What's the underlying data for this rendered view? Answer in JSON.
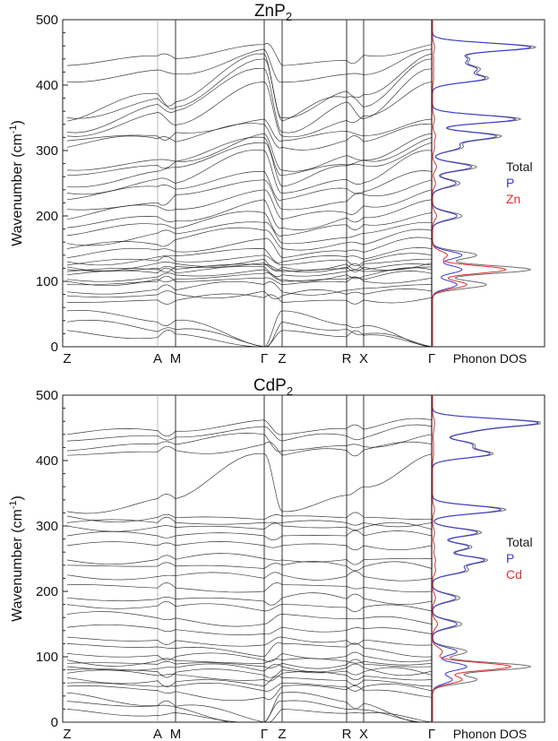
{
  "colors": {
    "total": "#6e6e6e",
    "p": "#3a3ad0",
    "metal": "#e03030",
    "band": "#1a1a1a"
  },
  "chart_data": [
    {
      "type": "line",
      "panel": "band-structure-and-dos",
      "title_main": "ZnP",
      "title_sub": "2",
      "ylabel_main": "Wavenumber (cm",
      "ylabel_sup": "-1",
      "ylabel_end": ")",
      "ylim": [
        0,
        500
      ],
      "yticks": [
        "0",
        "100",
        "200",
        "300",
        "400",
        "500"
      ],
      "kpoints": [
        "Z",
        "A",
        "M",
        "Γ",
        "Z",
        "R",
        "X",
        "Γ"
      ],
      "dos_label": "Phonon DOS",
      "legend": [
        "Total",
        "P",
        "Zn"
      ],
      "band_levels_at_Z": [
        25,
        38,
        55,
        68,
        78,
        84,
        95,
        100,
        103,
        110,
        115,
        118,
        122,
        125,
        130,
        136,
        150,
        158,
        170,
        182,
        195,
        210,
        225,
        235,
        245,
        262,
        270,
        305,
        315,
        322,
        328,
        345,
        350,
        405,
        430,
        438,
        448,
        455,
        460
      ],
      "band_levels_at_Gamma": [
        0,
        0,
        0,
        75,
        85,
        95,
        105,
        112,
        118,
        122,
        125,
        128,
        134,
        140,
        150,
        165,
        178,
        190,
        205,
        225,
        240,
        255,
        268,
        300,
        312,
        320,
        326,
        340,
        348,
        405,
        425,
        440,
        448,
        455,
        462
      ],
      "dos_peaks": [
        {
          "freq": 118,
          "total": 1.0,
          "p": 0.3,
          "metal": 0.75
        },
        {
          "freq": 95,
          "total": 0.55,
          "p": 0.25,
          "metal": 0.35
        },
        {
          "freq": 140,
          "total": 0.45,
          "p": 0.3,
          "metal": 0.15
        },
        {
          "freq": 200,
          "total": 0.3,
          "p": 0.25,
          "metal": 0.04
        },
        {
          "freq": 250,
          "total": 0.28,
          "p": 0.24,
          "metal": 0.03
        },
        {
          "freq": 275,
          "total": 0.45,
          "p": 0.4,
          "metal": 0.04
        },
        {
          "freq": 305,
          "total": 0.3,
          "p": 0.27,
          "metal": 0.02
        },
        {
          "freq": 322,
          "total": 0.7,
          "p": 0.65,
          "metal": 0.03
        },
        {
          "freq": 348,
          "total": 0.9,
          "p": 0.85,
          "metal": 0.02
        },
        {
          "freq": 410,
          "total": 0.55,
          "p": 0.52,
          "metal": 0.01
        },
        {
          "freq": 425,
          "total": 0.45,
          "p": 0.42,
          "metal": 0.01
        },
        {
          "freq": 440,
          "total": 0.35,
          "p": 0.33,
          "metal": 0.01
        },
        {
          "freq": 458,
          "total": 1.05,
          "p": 1.0,
          "metal": 0.02
        }
      ]
    },
    {
      "type": "line",
      "panel": "band-structure-and-dos",
      "title_main": "CdP",
      "title_sub": "2",
      "ylabel_main": "Wavenumber (cm",
      "ylabel_sup": "-1",
      "ylabel_end": ")",
      "ylim": [
        0,
        500
      ],
      "yticks": [
        "0",
        "100",
        "200",
        "300",
        "400",
        "500"
      ],
      "kpoints": [
        "Z",
        "A",
        "M",
        "Γ",
        "Z",
        "R",
        "X",
        "Γ"
      ],
      "dos_label": "Phonon DOS",
      "legend": [
        "Total",
        "P",
        "Cd"
      ],
      "band_levels_at_Z": [
        20,
        32,
        45,
        55,
        60,
        68,
        75,
        80,
        85,
        90,
        95,
        105,
        120,
        130,
        145,
        165,
        180,
        190,
        210,
        225,
        240,
        248,
        270,
        285,
        300,
        305,
        315,
        322,
        408,
        415,
        430,
        440,
        452,
        460
      ],
      "band_levels_at_Gamma": [
        0,
        0,
        0,
        38,
        48,
        55,
        65,
        72,
        78,
        85,
        90,
        95,
        100,
        118,
        135,
        150,
        170,
        185,
        200,
        220,
        235,
        250,
        270,
        285,
        295,
        305,
        310,
        410,
        425,
        440,
        452,
        462
      ],
      "dos_peaks": [
        {
          "freq": 85,
          "total": 1.0,
          "p": 0.35,
          "metal": 0.8
        },
        {
          "freq": 65,
          "total": 0.45,
          "p": 0.2,
          "metal": 0.3
        },
        {
          "freq": 108,
          "total": 0.35,
          "p": 0.25,
          "metal": 0.1
        },
        {
          "freq": 150,
          "total": 0.3,
          "p": 0.25,
          "metal": 0.05
        },
        {
          "freq": 190,
          "total": 0.28,
          "p": 0.24,
          "metal": 0.03
        },
        {
          "freq": 232,
          "total": 0.35,
          "p": 0.32,
          "metal": 0.03
        },
        {
          "freq": 248,
          "total": 0.55,
          "p": 0.52,
          "metal": 0.03
        },
        {
          "freq": 268,
          "total": 0.4,
          "p": 0.37,
          "metal": 0.02
        },
        {
          "freq": 290,
          "total": 0.5,
          "p": 0.46,
          "metal": 0.02
        },
        {
          "freq": 325,
          "total": 0.75,
          "p": 0.7,
          "metal": 0.02
        },
        {
          "freq": 410,
          "total": 0.6,
          "p": 0.57,
          "metal": 0.01
        },
        {
          "freq": 425,
          "total": 0.4,
          "p": 0.38,
          "metal": 0.01
        },
        {
          "freq": 445,
          "total": 0.35,
          "p": 0.33,
          "metal": 0.01
        },
        {
          "freq": 458,
          "total": 1.1,
          "p": 1.05,
          "metal": 0.02
        }
      ]
    }
  ]
}
